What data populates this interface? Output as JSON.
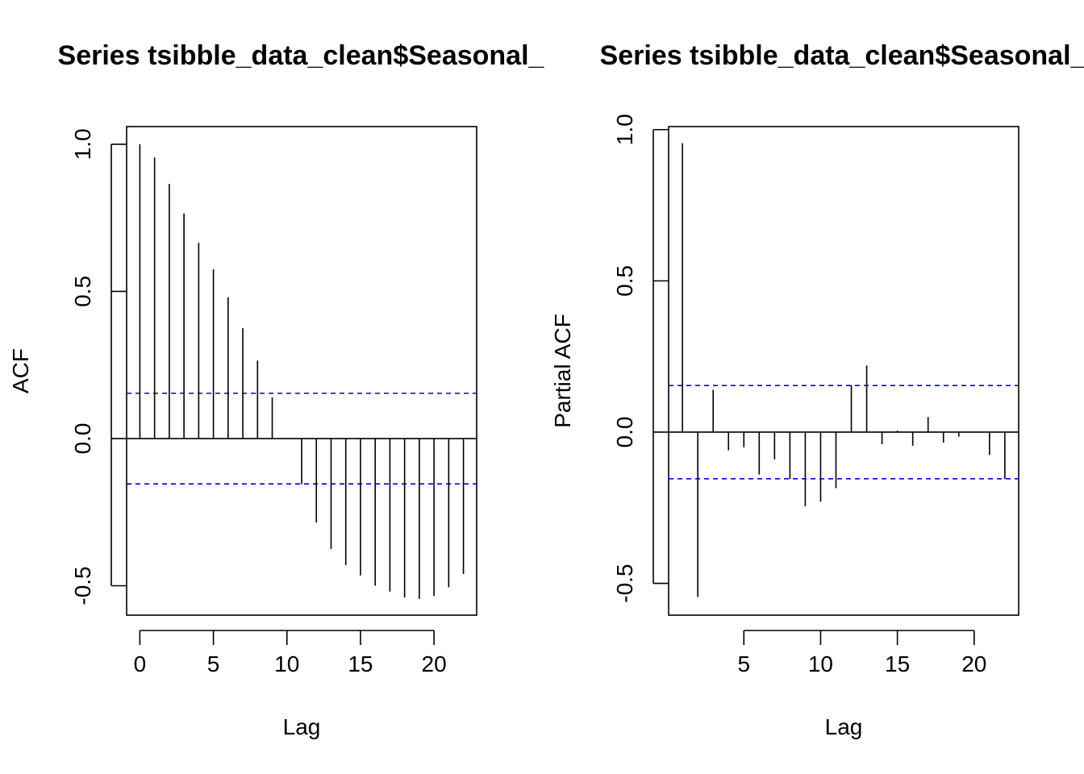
{
  "chart_data": [
    {
      "type": "bar",
      "subtype": "acf",
      "title": "Series  tsibble_data_clean$Seasonal_",
      "xlabel": "Lag",
      "ylabel": "ACF",
      "xlim": [
        -0.9,
        22.9
      ],
      "ylim": [
        -0.6,
        1.06
      ],
      "x_ticks": [
        0,
        5,
        10,
        15,
        20
      ],
      "y_ticks": [
        -0.5,
        0.0,
        0.5,
        1.0
      ],
      "y_tick_labels": [
        "-0.5",
        "0.0",
        "0.5",
        "1.0"
      ],
      "confidence_bound": 0.154,
      "confidence_color": "#0000ff",
      "lags": [
        0,
        1,
        2,
        3,
        4,
        5,
        6,
        7,
        8,
        9,
        10,
        11,
        12,
        13,
        14,
        15,
        16,
        17,
        18,
        19,
        20,
        21,
        22
      ],
      "values": [
        1.0,
        0.955,
        0.865,
        0.765,
        0.665,
        0.575,
        0.48,
        0.375,
        0.265,
        0.14,
        0.0,
        -0.155,
        -0.285,
        -0.375,
        -0.43,
        -0.465,
        -0.5,
        -0.52,
        -0.54,
        -0.545,
        -0.535,
        -0.505,
        -0.46
      ]
    },
    {
      "type": "bar",
      "subtype": "pacf",
      "title": "Series  tsibble_data_clean$Seasonal_",
      "xlabel": "Lag",
      "ylabel": "Partial ACF",
      "xlim": [
        0.1,
        22.9
      ],
      "ylim": [
        -0.605,
        1.01
      ],
      "x_ticks": [
        5,
        10,
        15,
        20
      ],
      "y_ticks": [
        -0.5,
        0.0,
        0.5,
        1.0
      ],
      "y_tick_labels": [
        "-0.5",
        "0.0",
        "0.5",
        "1.0"
      ],
      "confidence_bound": 0.154,
      "confidence_color": "#0000ff",
      "lags": [
        1,
        2,
        3,
        4,
        5,
        6,
        7,
        8,
        9,
        10,
        11,
        12,
        13,
        14,
        15,
        16,
        17,
        18,
        19,
        20,
        21,
        22
      ],
      "values": [
        0.955,
        -0.545,
        0.14,
        -0.06,
        -0.05,
        -0.14,
        -0.09,
        -0.155,
        -0.245,
        -0.23,
        -0.185,
        0.155,
        0.22,
        -0.04,
        0.005,
        -0.045,
        0.05,
        -0.035,
        -0.015,
        0.0,
        -0.075,
        -0.155
      ]
    }
  ]
}
